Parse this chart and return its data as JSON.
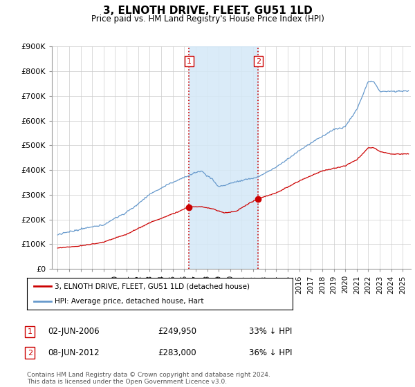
{
  "title": "3, ELNOTH DRIVE, FLEET, GU51 1LD",
  "subtitle": "Price paid vs. HM Land Registry's House Price Index (HPI)",
  "ylim": [
    0,
    900000
  ],
  "yticks": [
    0,
    100000,
    200000,
    300000,
    400000,
    500000,
    600000,
    700000,
    800000,
    900000
  ],
  "ytick_labels": [
    "£0",
    "£100K",
    "£200K",
    "£300K",
    "£400K",
    "£500K",
    "£600K",
    "£700K",
    "£800K",
    "£900K"
  ],
  "red_line_label": "3, ELNOTH DRIVE, FLEET, GU51 1LD (detached house)",
  "blue_line_label": "HPI: Average price, detached house, Hart",
  "sale1_date": "02-JUN-2006",
  "sale1_price": 249950,
  "sale2_date": "08-JUN-2012",
  "sale2_price": 283000,
  "sale1_year": 2006.42,
  "sale2_year": 2012.43,
  "annotation1_num": "1",
  "annotation1_date": "02-JUN-2006",
  "annotation1_price": "£249,950",
  "annotation1_hpi": "33% ↓ HPI",
  "annotation2_num": "2",
  "annotation2_date": "08-JUN-2012",
  "annotation2_price": "£283,000",
  "annotation2_hpi": "36% ↓ HPI",
  "footnote": "Contains HM Land Registry data © Crown copyright and database right 2024.\nThis data is licensed under the Open Government Licence v3.0.",
  "red_color": "#cc0000",
  "blue_color": "#6699cc",
  "shade_color": "#d4e8f7",
  "grid_color": "#cccccc"
}
